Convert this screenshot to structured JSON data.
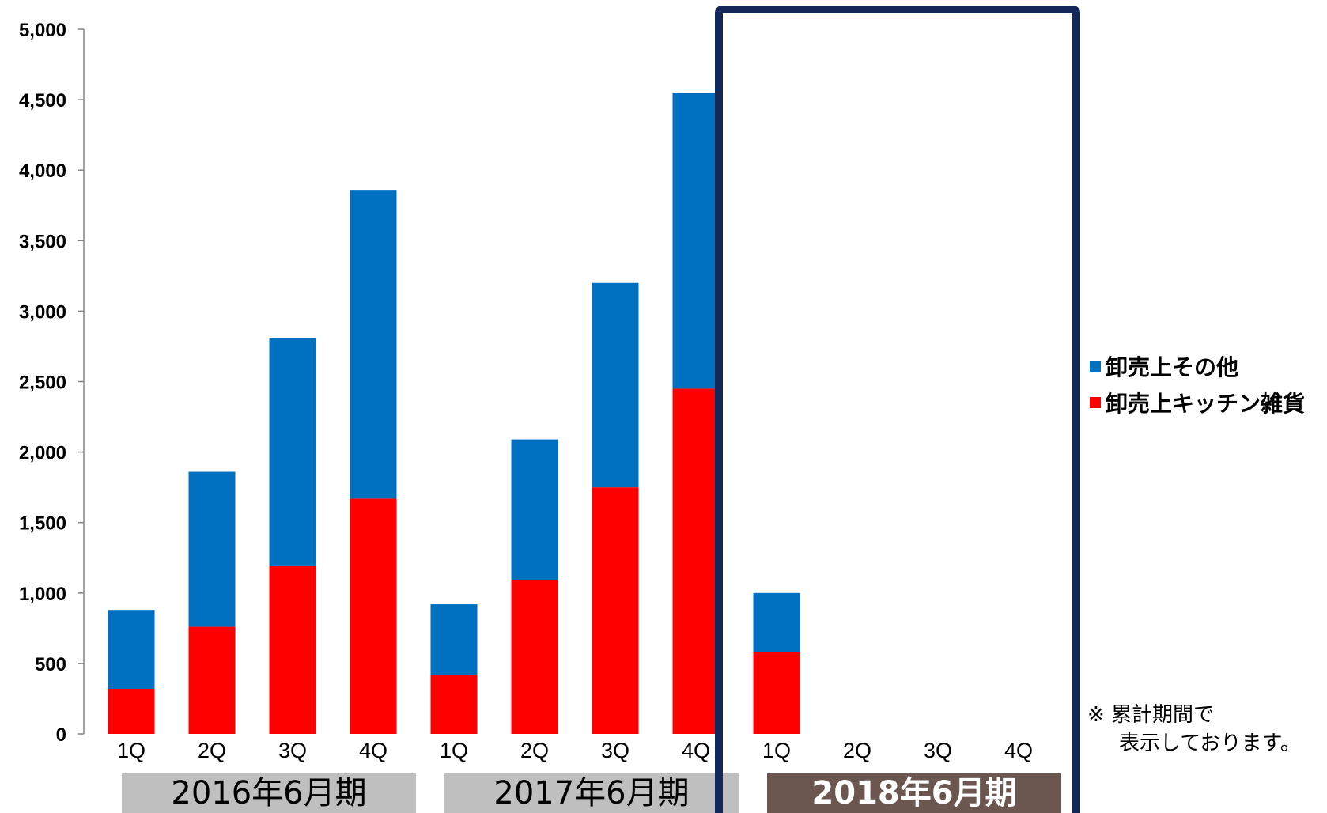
{
  "chart_data": {
    "type": "bar",
    "stacked": true,
    "categories": [
      "1Q",
      "2Q",
      "3Q",
      "4Q",
      "1Q",
      "2Q",
      "3Q",
      "4Q",
      "1Q",
      "2Q",
      "3Q",
      "4Q"
    ],
    "groups": [
      {
        "label": "2016年6月期",
        "highlight": false
      },
      {
        "label": "2017年6月期",
        "highlight": false
      },
      {
        "label": "2018年6月期",
        "highlight": true
      }
    ],
    "series": [
      {
        "name": "卸売上キッチン雑貨",
        "color": "#ff0000",
        "values": [
          320,
          760,
          1190,
          1670,
          420,
          1090,
          1750,
          2450,
          580,
          null,
          null,
          null
        ]
      },
      {
        "name": "卸売上その他",
        "color": "#0070c0",
        "values": [
          560,
          1100,
          1620,
          2190,
          500,
          1000,
          1450,
          2100,
          420,
          null,
          null,
          null
        ]
      }
    ],
    "ylim": [
      0,
      5000
    ],
    "yticks": [
      "0",
      "500",
      "1,000",
      "1,500",
      "2,000",
      "2,500",
      "3,000",
      "3,500",
      "4,000",
      "4,500",
      "5,000"
    ],
    "legend_position": "right",
    "grid": false,
    "colors": {
      "highlight_frame": "#14275a",
      "group_label_bg": "#bfbfbf",
      "group_label_highlight_bg": "#6b5650"
    }
  },
  "legend": [
    {
      "name": "卸売上その他",
      "color": "#0070c0"
    },
    {
      "name": "卸売上キッチン雑貨",
      "color": "#ff0000"
    }
  ],
  "note": {
    "line1": "※ 累計期間で",
    "line2": "表示しております。"
  }
}
